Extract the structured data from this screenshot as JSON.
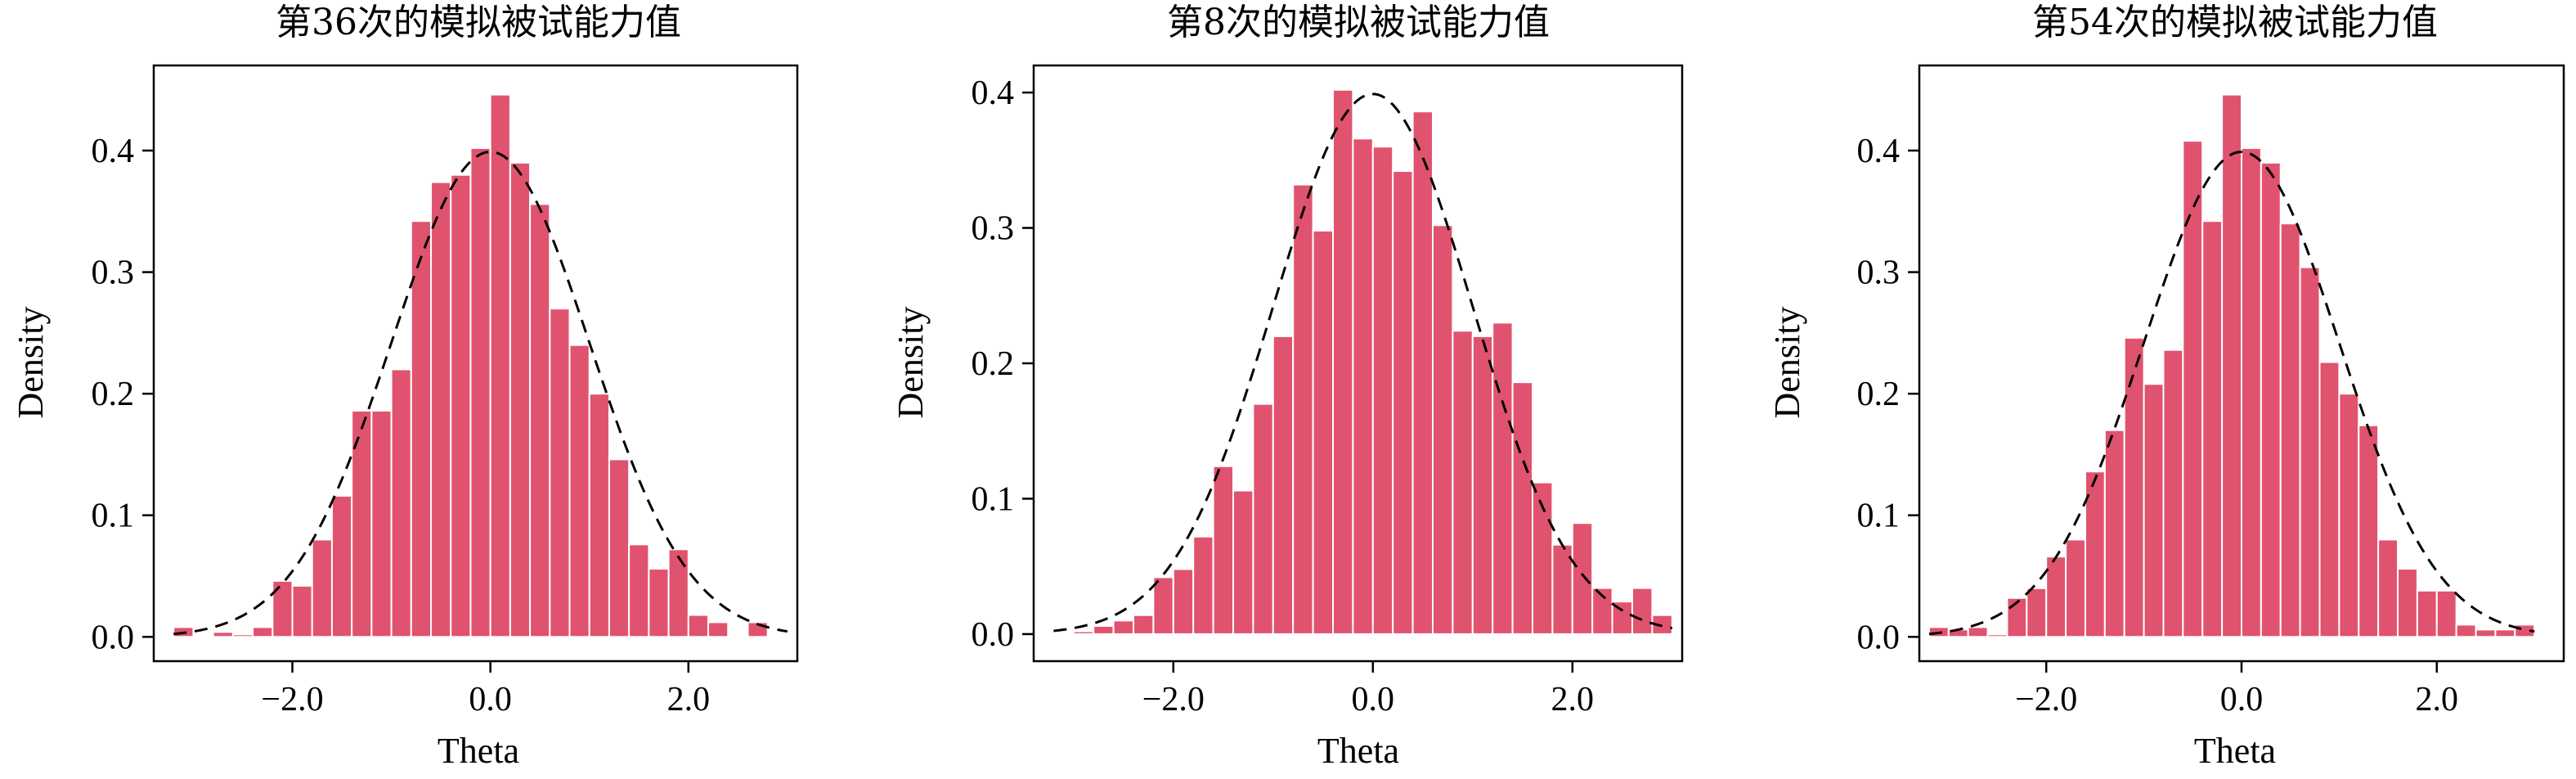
{
  "chart_data": [
    {
      "type": "bar",
      "title": "第36次的模拟被试能力值",
      "xlabel": "Theta",
      "ylabel": "Density",
      "xlim": [
        -3.4,
        3.1
      ],
      "ylim": [
        -0.02,
        0.47
      ],
      "xticks": [
        -2.0,
        0.0,
        2.0
      ],
      "xtick_labels": [
        "−2.0",
        "0.0",
        "2.0"
      ],
      "yticks": [
        0.0,
        0.1,
        0.2,
        0.3,
        0.4
      ],
      "ytick_labels": [
        "0.0",
        "0.1",
        "0.2",
        "0.3",
        "0.4"
      ],
      "bin_start": -3.2,
      "bin_width": 0.2,
      "values": [
        0.008,
        0.0,
        0.004,
        0.002,
        0.008,
        0.046,
        0.042,
        0.08,
        0.116,
        0.186,
        0.186,
        0.22,
        0.342,
        0.374,
        0.38,
        0.402,
        0.446,
        0.39,
        0.356,
        0.27,
        0.24,
        0.2,
        0.146,
        0.076,
        0.056,
        0.072,
        0.018,
        0.012,
        0.0,
        0.012
      ],
      "curve": "standard normal density (dashed)",
      "grid": false,
      "legend": "none"
    },
    {
      "type": "bar",
      "title": "第8次的模拟被试能力值",
      "xlabel": "Theta",
      "ylabel": "Density",
      "xlim": [
        -3.4,
        3.1
      ],
      "ylim": [
        -0.02,
        0.42
      ],
      "xticks": [
        -2.0,
        0.0,
        2.0
      ],
      "xtick_labels": [
        "−2.0",
        "0.0",
        "2.0"
      ],
      "yticks": [
        0.0,
        0.1,
        0.2,
        0.3,
        0.4
      ],
      "ytick_labels": [
        "0.0",
        "0.1",
        "0.2",
        "0.3",
        "0.4"
      ],
      "bin_start": -3.0,
      "bin_width": 0.2,
      "values": [
        0.002,
        0.006,
        0.01,
        0.014,
        0.042,
        0.048,
        0.072,
        0.124,
        0.106,
        0.17,
        0.22,
        0.332,
        0.298,
        0.402,
        0.366,
        0.36,
        0.342,
        0.386,
        0.302,
        0.224,
        0.22,
        0.23,
        0.186,
        0.112,
        0.066,
        0.082,
        0.034,
        0.024,
        0.034,
        0.014
      ],
      "curve": "standard normal density (dashed)",
      "grid": false,
      "legend": "none"
    },
    {
      "type": "bar",
      "title": "第54次的模拟被试能力值",
      "xlabel": "Theta",
      "ylabel": "Density",
      "xlim": [
        -3.3,
        3.3
      ],
      "ylim": [
        -0.02,
        0.47
      ],
      "xticks": [
        -2.0,
        0.0,
        2.0
      ],
      "xtick_labels": [
        "−2.0",
        "0.0",
        "2.0"
      ],
      "yticks": [
        0.0,
        0.1,
        0.2,
        0.3,
        0.4
      ],
      "ytick_labels": [
        "0.0",
        "0.1",
        "0.2",
        "0.3",
        "0.4"
      ],
      "bin_start": -3.2,
      "bin_width": 0.2,
      "values": [
        0.008,
        0.006,
        0.008,
        0.002,
        0.032,
        0.04,
        0.066,
        0.08,
        0.136,
        0.17,
        0.246,
        0.208,
        0.236,
        0.408,
        0.342,
        0.446,
        0.402,
        0.39,
        0.34,
        0.304,
        0.226,
        0.2,
        0.174,
        0.08,
        0.056,
        0.038,
        0.038,
        0.01,
        0.006,
        0.006,
        0.01
      ],
      "curve": "standard normal density (dashed)",
      "grid": false,
      "legend": "none"
    }
  ]
}
